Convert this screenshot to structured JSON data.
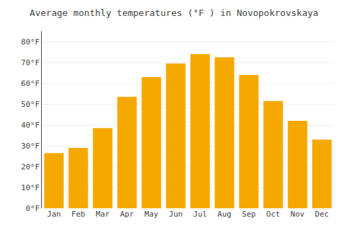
{
  "chart_data": {
    "type": "bar",
    "title": "Average monthly temperatures (°F ) in Novopokrovskaya",
    "categories": [
      "Jan",
      "Feb",
      "Mar",
      "Apr",
      "May",
      "Jun",
      "Jul",
      "Aug",
      "Sep",
      "Oct",
      "Nov",
      "Dec"
    ],
    "values": [
      26.5,
      29.0,
      38.5,
      53.5,
      63.0,
      69.5,
      74.0,
      72.5,
      64.0,
      51.5,
      42.0,
      33.0
    ],
    "color": "#F5A800",
    "ylim": [
      0,
      85
    ],
    "yticks": [
      {
        "value": 0,
        "label": "0°F"
      },
      {
        "value": 10,
        "label": "10°F"
      },
      {
        "value": 20,
        "label": "20°F"
      },
      {
        "value": 30,
        "label": "30°F"
      },
      {
        "value": 40,
        "label": "40°F"
      },
      {
        "value": 50,
        "label": "50°F"
      },
      {
        "value": 60,
        "label": "60°F"
      },
      {
        "value": 70,
        "label": "70°F"
      },
      {
        "value": 80,
        "label": "80°F"
      }
    ],
    "grid": true
  }
}
